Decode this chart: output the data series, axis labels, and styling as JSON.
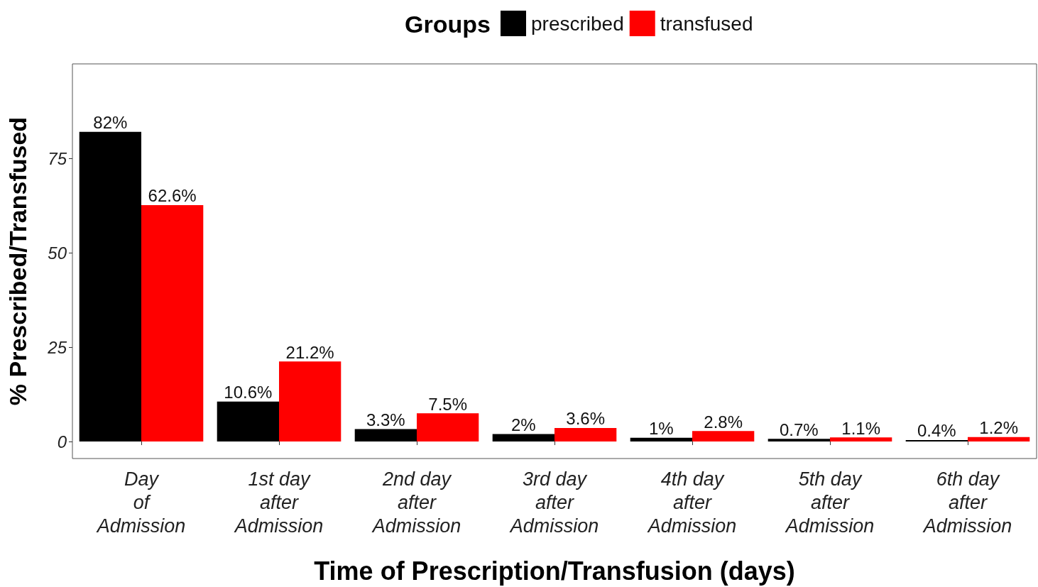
{
  "chart_data": {
    "type": "bar",
    "xlabel": "Time of Prescription/Transfusion (days)",
    "ylabel": "% Prescribed/Transfused",
    "legend_title": "Groups",
    "legend": "top",
    "categories": [
      "Day\nof\nAdmission",
      "1st day\nafter\nAdmission",
      "2nd day\nafter\nAdmission",
      "3rd day\nafter\nAdmission",
      "4th day\nafter\nAdmission",
      "5th day\nafter\nAdmission",
      "6th day\nafter\nAdmission"
    ],
    "series": [
      {
        "name": "prescribed",
        "color": "#000000",
        "values": [
          82,
          10.6,
          3.3,
          2,
          1,
          0.7,
          0.4
        ],
        "value_labels": [
          "82%",
          "10.6%",
          "3.3%",
          "2%",
          "1%",
          "0.7%",
          "0.4%"
        ]
      },
      {
        "name": "transfused",
        "color": "#ff0000",
        "values": [
          62.6,
          21.2,
          7.5,
          3.6,
          2.8,
          1.1,
          1.2
        ],
        "value_labels": [
          "62.6%",
          "21.2%",
          "7.5%",
          "3.6%",
          "2.8%",
          "1.1%",
          "1.2%"
        ]
      }
    ],
    "ylim": [
      -4.5,
      100
    ],
    "yticks": [
      0,
      25,
      50,
      75
    ],
    "grid": false
  }
}
